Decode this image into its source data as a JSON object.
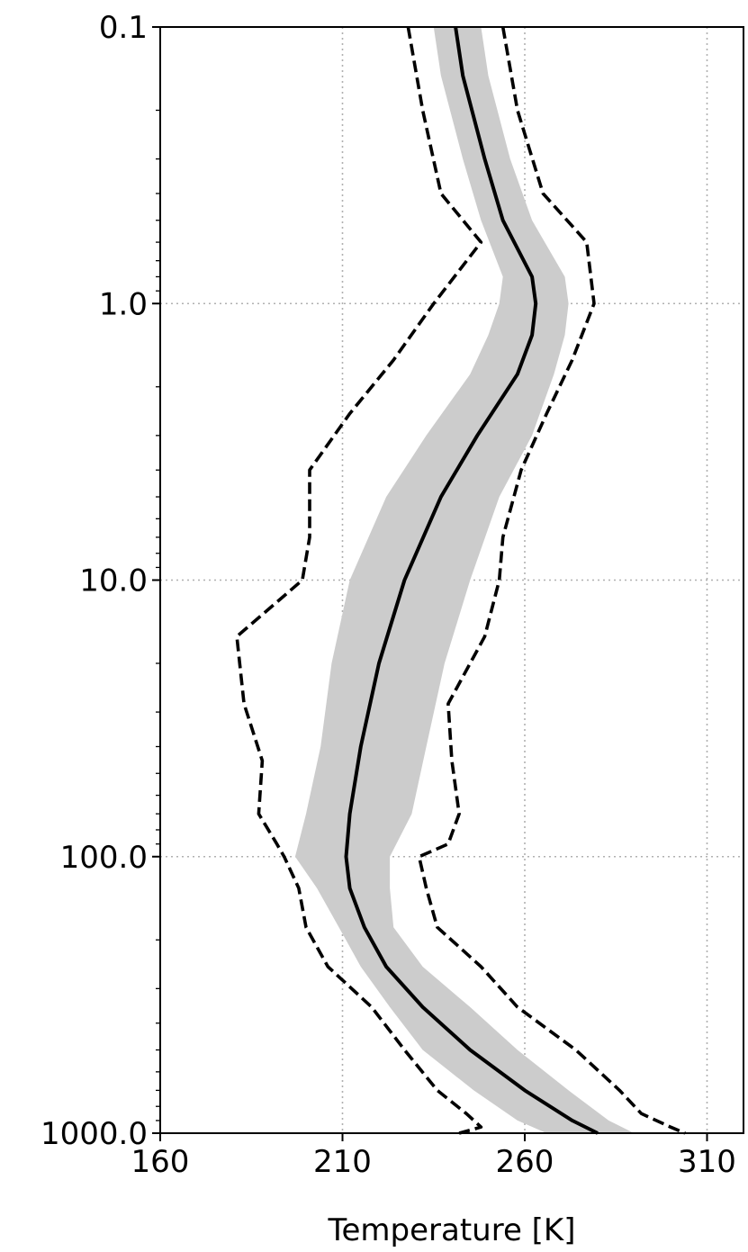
{
  "chart_data": {
    "type": "line",
    "title": "",
    "xlabel": "Temperature [K]",
    "ylabel": "",
    "xlim": [
      160,
      320
    ],
    "ylim": [
      1000.0,
      0.1
    ],
    "y_scale": "log",
    "y_inverted": true,
    "x_ticks": [
      160,
      210,
      260,
      310
    ],
    "x_tick_labels": [
      "160",
      "210",
      "260",
      "310"
    ],
    "y_ticks": [
      0.1,
      1.0,
      10.0,
      100.0,
      1000.0
    ],
    "y_tick_labels": [
      "0.1",
      "1.0",
      "10.0",
      "100.0",
      "1000.0"
    ],
    "grid": true,
    "legend": "none",
    "colors": {
      "mean": "#000000",
      "band": "#cccccc",
      "extremes": "#000000",
      "grid": "#b0b0b0"
    },
    "series": [
      {
        "style": "solid",
        "pressure": [
          0.1,
          0.15,
          0.3,
          0.5,
          0.8,
          1.0,
          1.3,
          1.8,
          3.0,
          5.0,
          10.0,
          20.0,
          40.0,
          70.0,
          100.0,
          130.0,
          180.0,
          250.0,
          350.0,
          500.0,
          700.0,
          900.0,
          1000.0
        ],
        "temperature": [
          241,
          243,
          249,
          254,
          262,
          263,
          262,
          258,
          247,
          237,
          227,
          220,
          215,
          212,
          211,
          212,
          216,
          222,
          232,
          245,
          260,
          273,
          280
        ]
      },
      {
        "style": "band",
        "pressure": [
          0.1,
          0.15,
          0.3,
          0.5,
          0.8,
          1.0,
          1.3,
          1.8,
          3.0,
          5.0,
          10.0,
          20.0,
          40.0,
          70.0,
          100.0,
          130.0,
          180.0,
          250.0,
          350.0,
          500.0,
          700.0,
          900.0,
          1000.0
        ],
        "lower": [
          235,
          237,
          243,
          248,
          254,
          253,
          250,
          245,
          233,
          222,
          212,
          207,
          204,
          200,
          197,
          203,
          209,
          215,
          223,
          232,
          246,
          258,
          266
        ],
        "upper": [
          248,
          250,
          256,
          262,
          271,
          272,
          271,
          268,
          262,
          253,
          245,
          238,
          233,
          229,
          223,
          223,
          224,
          232,
          245,
          258,
          272,
          283,
          290
        ]
      },
      {
        "style": "dashed",
        "pressure": [
          0.1,
          0.2,
          0.4,
          0.6,
          1.0,
          1.6,
          2.5,
          4.0,
          7.0,
          10.0,
          16.0,
          28.0,
          45.0,
          70.0,
          90.0,
          100.0,
          130.0,
          180.0,
          250.0,
          350.0,
          500.0,
          700.0,
          850.0,
          950.0,
          1000.0
        ],
        "temperature": [
          228,
          232,
          237,
          248,
          235,
          224,
          212,
          201,
          201,
          199,
          181,
          183,
          188,
          187,
          192,
          194,
          198,
          200,
          206,
          218,
          227,
          236,
          244,
          248,
          242
        ]
      },
      {
        "style": "dashed",
        "pressure": [
          0.1,
          0.2,
          0.4,
          0.6,
          1.0,
          1.6,
          2.5,
          4.0,
          7.0,
          10.0,
          16.0,
          28.0,
          45.0,
          70.0,
          90.0,
          100.0,
          130.0,
          180.0,
          250.0,
          350.0,
          500.0,
          700.0,
          850.0,
          950.0,
          1000.0
        ],
        "temperature": [
          254,
          258,
          265,
          277,
          279,
          273,
          266,
          259,
          254,
          253,
          249,
          239,
          240,
          242,
          239,
          231,
          233,
          236,
          248,
          258,
          274,
          286,
          292,
          300,
          304
        ]
      }
    ]
  }
}
